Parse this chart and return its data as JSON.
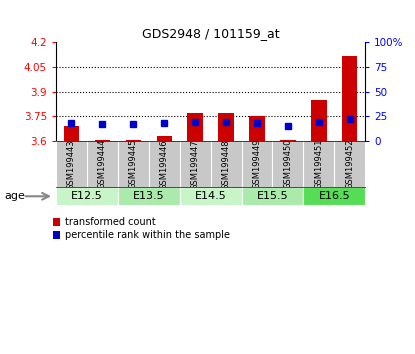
{
  "title": "GDS2948 / 101159_at",
  "samples": [
    "GSM199443",
    "GSM199444",
    "GSM199445",
    "GSM199446",
    "GSM199447",
    "GSM199448",
    "GSM199449",
    "GSM199450",
    "GSM199451",
    "GSM199452"
  ],
  "transformed_counts": [
    3.69,
    3.61,
    3.61,
    3.63,
    3.77,
    3.77,
    3.75,
    3.61,
    3.85,
    4.12
  ],
  "percentile_ranks": [
    18,
    17,
    17,
    18,
    19,
    19,
    18,
    15,
    19,
    22
  ],
  "ylim_left": [
    3.6,
    4.2
  ],
  "ylim_right": [
    0,
    100
  ],
  "yticks_left": [
    3.6,
    3.75,
    3.9,
    4.05,
    4.2
  ],
  "yticks_right": [
    0,
    25,
    50,
    75,
    100
  ],
  "ytick_labels_right": [
    "0",
    "25",
    "50",
    "75",
    "100%"
  ],
  "grid_lines": [
    3.75,
    3.9,
    4.05
  ],
  "age_groups": [
    {
      "label": "E12.5",
      "samples": [
        0,
        1
      ],
      "color": "#c8f5c8"
    },
    {
      "label": "E13.5",
      "samples": [
        2,
        3
      ],
      "color": "#aaeaaa"
    },
    {
      "label": "E14.5",
      "samples": [
        4,
        5
      ],
      "color": "#c8f5c8"
    },
    {
      "label": "E15.5",
      "samples": [
        6,
        7
      ],
      "color": "#aaeaaa"
    },
    {
      "label": "E16.5",
      "samples": [
        8,
        9
      ],
      "color": "#55dd55"
    }
  ],
  "bar_color_red": "#cc0000",
  "bar_color_blue": "#0000cc",
  "bar_width": 0.5,
  "baseline": 3.6,
  "background_color": "#ffffff",
  "sample_cell_color": "#c8c8c8",
  "legend_red_label": "transformed count",
  "legend_blue_label": "percentile rank within the sample"
}
